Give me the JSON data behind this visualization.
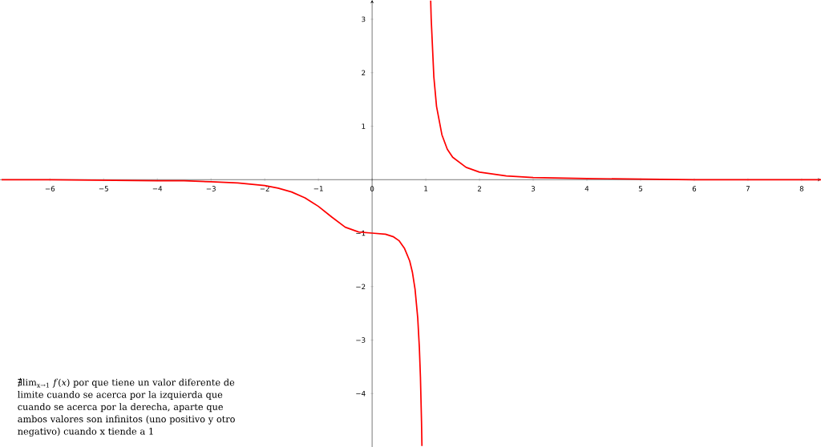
{
  "chart_data": {
    "type": "line",
    "xlim": [
      -6.93,
      8.36
    ],
    "ylim": [
      -5,
      3.36
    ],
    "xticks": [
      {
        "value": -6,
        "label": "−6"
      },
      {
        "value": -5,
        "label": "−5"
      },
      {
        "value": -4,
        "label": "−4"
      },
      {
        "value": -3,
        "label": "−3"
      },
      {
        "value": -2,
        "label": "−2"
      },
      {
        "value": -1,
        "label": "−1"
      },
      0,
      1,
      2,
      3,
      4,
      5,
      6,
      7,
      8
    ],
    "yticks": [
      {
        "value": -4,
        "label": "−4"
      },
      {
        "value": -3,
        "label": "−3"
      },
      {
        "value": -2,
        "label": "−2"
      },
      {
        "value": -1,
        "label": "−1"
      },
      1,
      2,
      3
    ],
    "marker": "none",
    "line_style": "solid",
    "series": [
      {
        "color": "#ff0000",
        "x": [
          -6.9,
          -6,
          -5,
          -4,
          -3.5,
          -3,
          -2.5,
          -2,
          -1.75,
          -1.5,
          -1.25,
          -1,
          -0.75,
          -0.5,
          -0.25,
          0,
          0.25,
          0.4,
          0.5,
          0.6,
          0.7,
          0.75,
          0.8,
          0.85,
          0.88,
          0.9,
          0.92,
          0.928
        ],
        "values": [
          0,
          0,
          -0.01,
          -0.02,
          -0.02,
          -0.04,
          -0.06,
          -0.11,
          -0.16,
          -0.23,
          -0.34,
          -0.5,
          -0.7,
          -0.89,
          -0.98,
          -1,
          -1.02,
          -1.07,
          -1.14,
          -1.28,
          -1.52,
          -1.73,
          -2.05,
          -2.59,
          -3.14,
          -3.69,
          -4.52,
          -4.98
        ]
      },
      {
        "color": "#ff0000",
        "x": [
          1.091,
          1.1,
          1.15,
          1.2,
          1.3,
          1.4,
          1.5,
          1.75,
          2,
          2.5,
          3,
          4,
          5,
          6,
          7,
          8.36
        ],
        "values": [
          3.35,
          3.02,
          1.92,
          1.37,
          0.84,
          0.57,
          0.42,
          0.23,
          0.14,
          0.07,
          0.04,
          0.02,
          0.01,
          0,
          0,
          0
        ]
      }
    ],
    "annotations": [
      "∄lim$_{x→1}$ *f*(*x*) por que tiene un valor diferente de limite cuando se acerca por la izquierda  que cuando se acerca por la derecha, aparte que ambos valores son infinitos (uno positivo y otro negativo) cuando x tiende a 1"
    ]
  }
}
